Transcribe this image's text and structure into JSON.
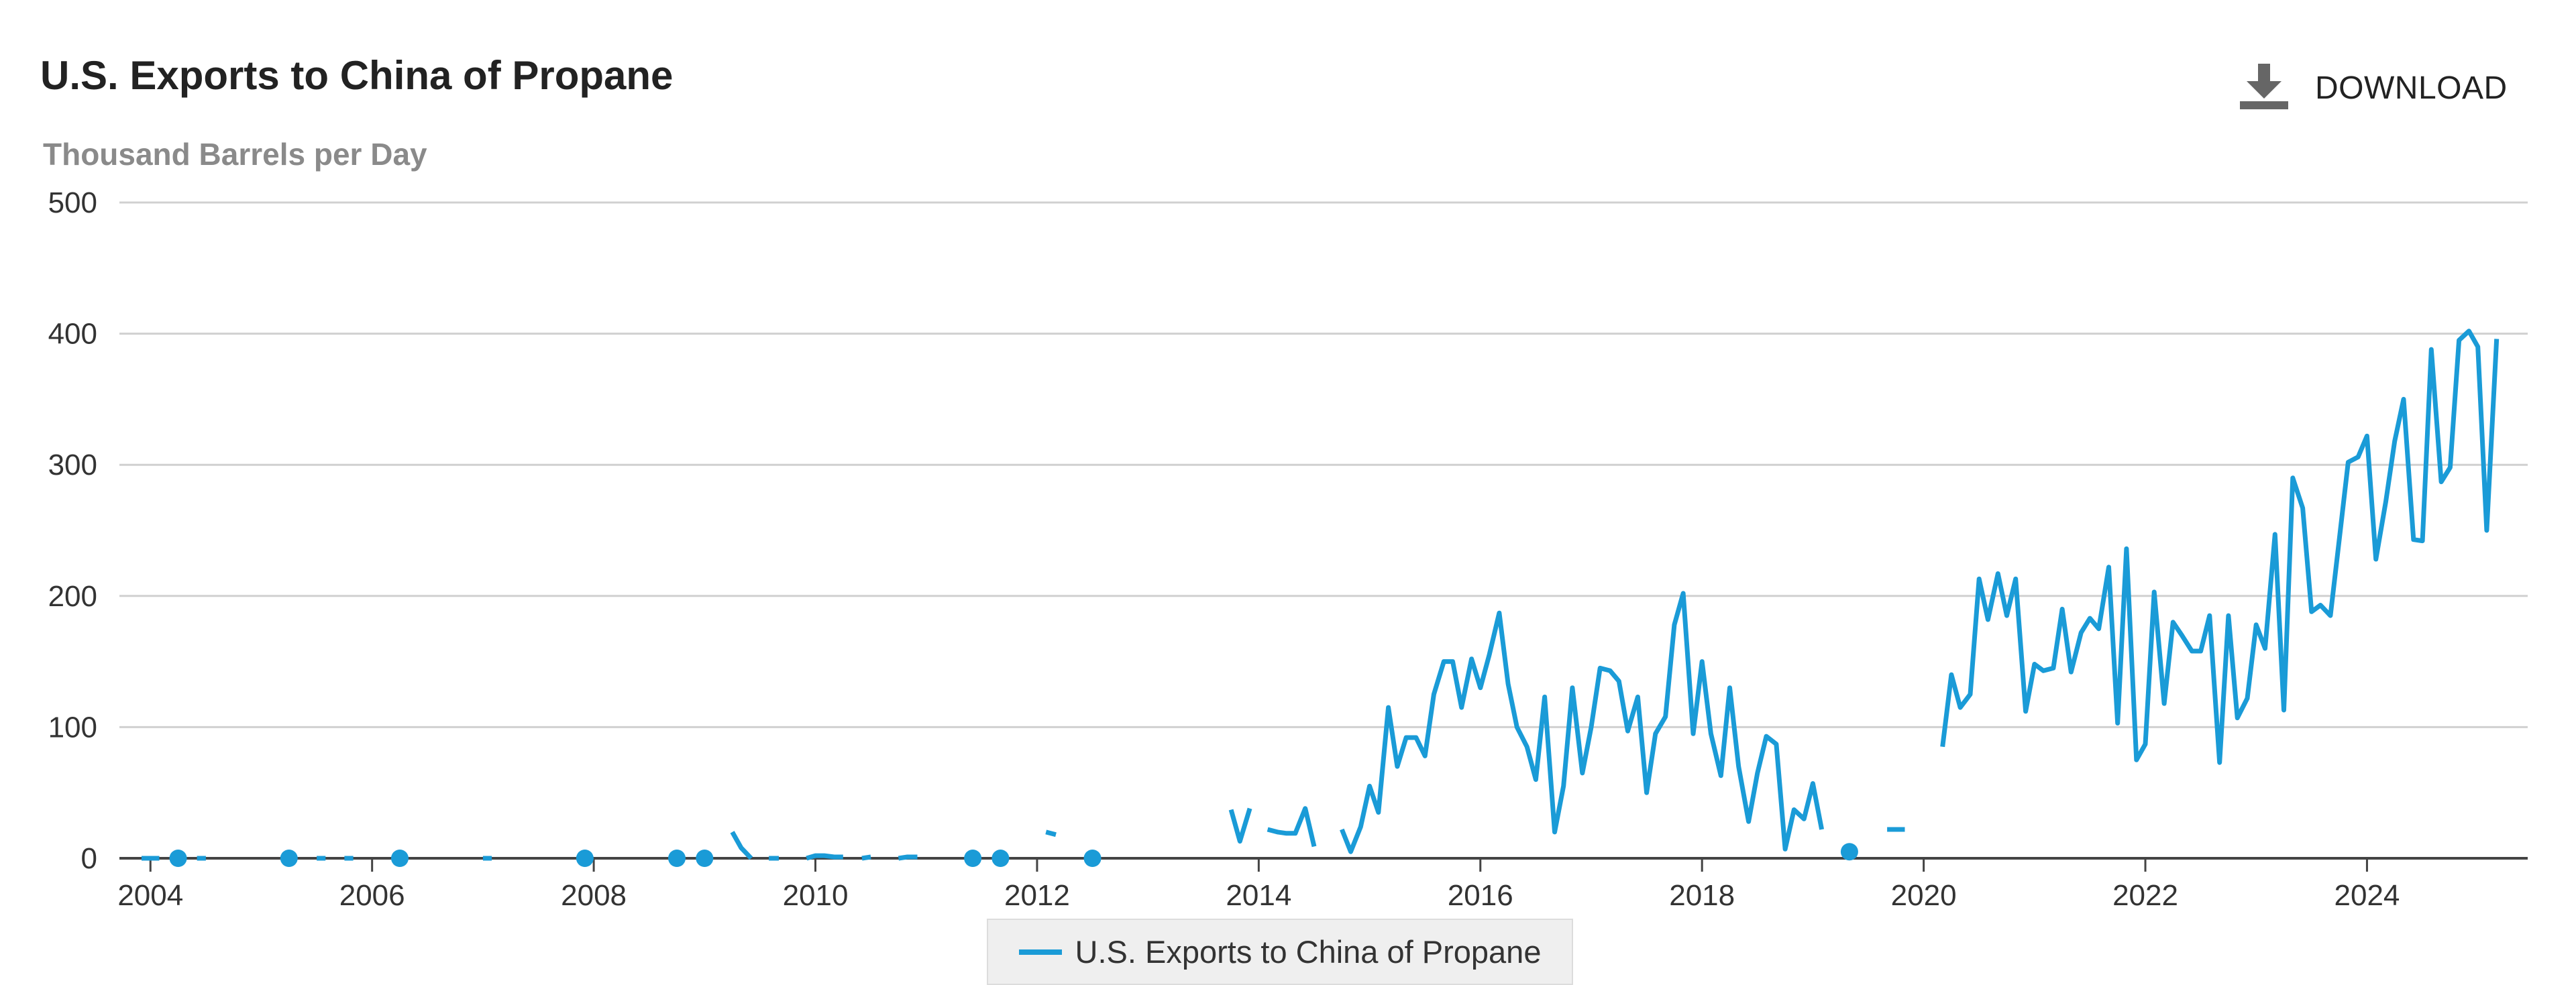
{
  "header": {
    "title": "U.S. Exports to China of Propane",
    "download_label": "DOWNLOAD",
    "download_icon": "download-icon"
  },
  "colors": {
    "series": "#1a9bd7",
    "grid": "#d0d0d0",
    "axis": "#333333",
    "legend_bg": "#efefef"
  },
  "chart_data": {
    "type": "line",
    "title": "U.S. Exports to China of Propane",
    "ylabel": "Thousand Barrels per Day",
    "xlabel": "",
    "ylim": [
      0,
      500
    ],
    "xlim": [
      2003.8,
      2025.4
    ],
    "yticks": [
      "0",
      "100",
      "200",
      "300",
      "400",
      "500"
    ],
    "xticks": [
      "2004",
      "2006",
      "2008",
      "2010",
      "2012",
      "2014",
      "2016",
      "2018",
      "2020",
      "2022",
      "2024"
    ],
    "grid": true,
    "legend_position": "bottom-center",
    "series": [
      {
        "name": "U.S. Exports to China of Propane",
        "points": [
          [
            2003.92,
            0
          ],
          [
            2004.0,
            0
          ],
          [
            2004.08,
            0
          ],
          [
            2004.17,
            null
          ],
          [
            2004.25,
            0
          ],
          [
            2004.33,
            null
          ],
          [
            2004.42,
            0
          ],
          [
            2004.5,
            0
          ],
          [
            2004.58,
            null
          ],
          [
            2004.67,
            null
          ],
          [
            2004.75,
            null
          ],
          [
            2004.83,
            null
          ],
          [
            2004.92,
            null
          ],
          [
            2005.0,
            null
          ],
          [
            2005.08,
            null
          ],
          [
            2005.17,
            null
          ],
          [
            2005.25,
            0
          ],
          [
            2005.33,
            null
          ],
          [
            2005.42,
            null
          ],
          [
            2005.5,
            0
          ],
          [
            2005.58,
            0
          ],
          [
            2005.67,
            null
          ],
          [
            2005.75,
            0
          ],
          [
            2005.83,
            0
          ],
          [
            2005.92,
            null
          ],
          [
            2006.0,
            null
          ],
          [
            2006.08,
            null
          ],
          [
            2006.17,
            null
          ],
          [
            2006.25,
            0
          ],
          [
            2006.33,
            null
          ],
          [
            2006.42,
            null
          ],
          [
            2006.5,
            null
          ],
          [
            2006.58,
            null
          ],
          [
            2006.67,
            null
          ],
          [
            2006.75,
            null
          ],
          [
            2006.83,
            null
          ],
          [
            2006.92,
            null
          ],
          [
            2007.0,
            0
          ],
          [
            2007.08,
            0
          ],
          [
            2007.17,
            null
          ],
          [
            2007.25,
            null
          ],
          [
            2007.33,
            null
          ],
          [
            2007.42,
            null
          ],
          [
            2007.5,
            null
          ],
          [
            2007.58,
            null
          ],
          [
            2007.67,
            null
          ],
          [
            2007.75,
            null
          ],
          [
            2007.83,
            null
          ],
          [
            2007.92,
            0
          ],
          [
            2008.0,
            null
          ],
          [
            2008.08,
            null
          ],
          [
            2008.17,
            null
          ],
          [
            2008.25,
            null
          ],
          [
            2008.33,
            null
          ],
          [
            2008.42,
            null
          ],
          [
            2008.5,
            null
          ],
          [
            2008.58,
            null
          ],
          [
            2008.67,
            null
          ],
          [
            2008.75,
            0
          ],
          [
            2008.83,
            null
          ],
          [
            2008.92,
            null
          ],
          [
            2009.0,
            0
          ],
          [
            2009.08,
            null
          ],
          [
            2009.17,
            null
          ],
          [
            2009.25,
            20
          ],
          [
            2009.33,
            8
          ],
          [
            2009.42,
            0
          ],
          [
            2009.5,
            null
          ],
          [
            2009.58,
            0
          ],
          [
            2009.67,
            0
          ],
          [
            2009.75,
            null
          ],
          [
            2009.83,
            null
          ],
          [
            2009.92,
            0
          ],
          [
            2010.0,
            2
          ],
          [
            2010.08,
            2
          ],
          [
            2010.17,
            1
          ],
          [
            2010.25,
            1
          ],
          [
            2010.33,
            null
          ],
          [
            2010.42,
            0
          ],
          [
            2010.5,
            1
          ],
          [
            2010.58,
            null
          ],
          [
            2010.67,
            null
          ],
          [
            2010.75,
            0
          ],
          [
            2010.83,
            1
          ],
          [
            2010.92,
            1
          ],
          [
            2011.0,
            null
          ],
          [
            2011.08,
            null
          ],
          [
            2011.17,
            null
          ],
          [
            2011.25,
            null
          ],
          [
            2011.33,
            null
          ],
          [
            2011.42,
            0
          ],
          [
            2011.5,
            null
          ],
          [
            2011.58,
            null
          ],
          [
            2011.67,
            0
          ],
          [
            2011.75,
            null
          ],
          [
            2011.83,
            null
          ],
          [
            2011.92,
            null
          ],
          [
            2012.0,
            null
          ],
          [
            2012.08,
            20
          ],
          [
            2012.17,
            18
          ],
          [
            2012.25,
            null
          ],
          [
            2012.33,
            null
          ],
          [
            2012.42,
            null
          ],
          [
            2012.5,
            0
          ],
          [
            2012.58,
            null
          ],
          [
            2012.67,
            null
          ],
          [
            2012.75,
            null
          ],
          [
            2012.83,
            null
          ],
          [
            2012.92,
            null
          ],
          [
            2013.0,
            null
          ],
          [
            2013.08,
            null
          ],
          [
            2013.17,
            null
          ],
          [
            2013.25,
            null
          ],
          [
            2013.33,
            null
          ],
          [
            2013.42,
            null
          ],
          [
            2013.5,
            null
          ],
          [
            2013.58,
            null
          ],
          [
            2013.67,
            null
          ],
          [
            2013.75,
            37
          ],
          [
            2013.83,
            13
          ],
          [
            2013.92,
            38
          ],
          [
            2014.0,
            null
          ],
          [
            2014.08,
            22
          ],
          [
            2014.17,
            20
          ],
          [
            2014.25,
            19
          ],
          [
            2014.33,
            19
          ],
          [
            2014.42,
            38
          ],
          [
            2014.5,
            9
          ],
          [
            2014.58,
            null
          ],
          [
            2014.67,
            null
          ],
          [
            2014.75,
            22
          ],
          [
            2014.83,
            5
          ],
          [
            2014.92,
            24
          ],
          [
            2015.0,
            55
          ],
          [
            2015.08,
            35
          ],
          [
            2015.17,
            115
          ],
          [
            2015.25,
            70
          ],
          [
            2015.33,
            92
          ],
          [
            2015.42,
            92
          ],
          [
            2015.5,
            78
          ],
          [
            2015.58,
            125
          ],
          [
            2015.67,
            150
          ],
          [
            2015.75,
            150
          ],
          [
            2015.83,
            115
          ],
          [
            2015.92,
            152
          ],
          [
            2016.0,
            130
          ],
          [
            2016.08,
            155
          ],
          [
            2016.17,
            187
          ],
          [
            2016.25,
            133
          ],
          [
            2016.33,
            100
          ],
          [
            2016.42,
            85
          ],
          [
            2016.5,
            60
          ],
          [
            2016.58,
            123
          ],
          [
            2016.67,
            20
          ],
          [
            2016.75,
            55
          ],
          [
            2016.83,
            130
          ],
          [
            2016.92,
            65
          ],
          [
            2017.0,
            100
          ],
          [
            2017.08,
            145
          ],
          [
            2017.17,
            143
          ],
          [
            2017.25,
            135
          ],
          [
            2017.33,
            97
          ],
          [
            2017.42,
            123
          ],
          [
            2017.5,
            50
          ],
          [
            2017.58,
            95
          ],
          [
            2017.67,
            108
          ],
          [
            2017.75,
            178
          ],
          [
            2017.83,
            202
          ],
          [
            2017.92,
            95
          ],
          [
            2018.0,
            150
          ],
          [
            2018.08,
            95
          ],
          [
            2018.17,
            63
          ],
          [
            2018.25,
            130
          ],
          [
            2018.33,
            70
          ],
          [
            2018.42,
            28
          ],
          [
            2018.5,
            65
          ],
          [
            2018.58,
            93
          ],
          [
            2018.67,
            87
          ],
          [
            2018.75,
            7
          ],
          [
            2018.83,
            37
          ],
          [
            2018.92,
            30
          ],
          [
            2019.0,
            57
          ],
          [
            2019.08,
            22
          ],
          [
            2019.17,
            null
          ],
          [
            2019.25,
            null
          ],
          [
            2019.33,
            5
          ],
          [
            2019.42,
            null
          ],
          [
            2019.5,
            null
          ],
          [
            2019.58,
            null
          ],
          [
            2019.67,
            22
          ],
          [
            2019.75,
            22
          ],
          [
            2019.83,
            22
          ],
          [
            2019.92,
            null
          ],
          [
            2020.0,
            null
          ],
          [
            2020.08,
            null
          ],
          [
            2020.17,
            85
          ],
          [
            2020.25,
            140
          ],
          [
            2020.33,
            115
          ],
          [
            2020.42,
            125
          ],
          [
            2020.5,
            213
          ],
          [
            2020.58,
            182
          ],
          [
            2020.67,
            217
          ],
          [
            2020.75,
            185
          ],
          [
            2020.83,
            213
          ],
          [
            2020.92,
            112
          ],
          [
            2021.0,
            148
          ],
          [
            2021.08,
            143
          ],
          [
            2021.17,
            145
          ],
          [
            2021.25,
            190
          ],
          [
            2021.33,
            142
          ],
          [
            2021.42,
            172
          ],
          [
            2021.5,
            183
          ],
          [
            2021.58,
            175
          ],
          [
            2021.67,
            222
          ],
          [
            2021.75,
            103
          ],
          [
            2021.83,
            236
          ],
          [
            2021.92,
            75
          ],
          [
            2022.0,
            87
          ],
          [
            2022.08,
            203
          ],
          [
            2022.17,
            118
          ],
          [
            2022.25,
            180
          ],
          [
            2022.33,
            170
          ],
          [
            2022.42,
            158
          ],
          [
            2022.5,
            158
          ],
          [
            2022.58,
            185
          ],
          [
            2022.67,
            73
          ],
          [
            2022.75,
            185
          ],
          [
            2022.83,
            107
          ],
          [
            2022.92,
            122
          ],
          [
            2023.0,
            178
          ],
          [
            2023.08,
            160
          ],
          [
            2023.17,
            247
          ],
          [
            2023.25,
            113
          ],
          [
            2023.33,
            290
          ],
          [
            2023.42,
            267
          ],
          [
            2023.5,
            188
          ],
          [
            2023.58,
            193
          ],
          [
            2023.67,
            185
          ],
          [
            2023.75,
            243
          ],
          [
            2023.83,
            302
          ],
          [
            2023.92,
            306
          ],
          [
            2024.0,
            322
          ],
          [
            2024.08,
            228
          ],
          [
            2024.17,
            272
          ],
          [
            2024.25,
            318
          ],
          [
            2024.33,
            350
          ],
          [
            2024.42,
            243
          ],
          [
            2024.5,
            242
          ],
          [
            2024.58,
            388
          ],
          [
            2024.67,
            287
          ],
          [
            2024.75,
            298
          ],
          [
            2024.83,
            395
          ],
          [
            2024.92,
            402
          ],
          [
            2025.0,
            390
          ],
          [
            2025.08,
            250
          ],
          [
            2025.17,
            396
          ]
        ]
      }
    ]
  }
}
